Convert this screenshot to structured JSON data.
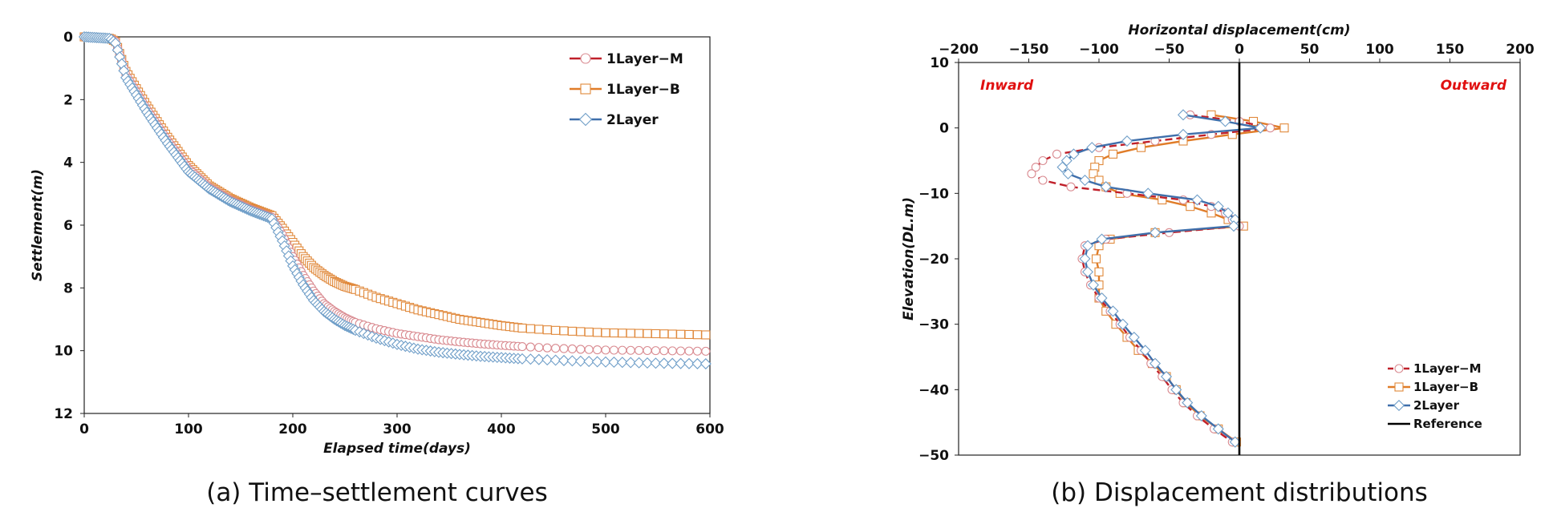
{
  "colors": {
    "m": "#c0202a",
    "b": "#e07c28",
    "layer2": "#3f6fab",
    "marker_m": "#d98a90",
    "marker_b": "#e0883a",
    "marker_2": "#6f9ec8",
    "reference": "#000000",
    "annotation": "#e01010"
  },
  "chart_data": [
    {
      "type": "scatter",
      "caption": "(a) Time–settlement curves",
      "xlabel": "Elapsed time(days)",
      "ylabel": "Settlement(m)",
      "xlim": [
        0,
        600
      ],
      "ylim": [
        0,
        12
      ],
      "y_inverted": true,
      "xticks": [
        0,
        100,
        200,
        300,
        400,
        500,
        600
      ],
      "yticks": [
        0,
        2,
        4,
        6,
        8,
        10,
        12
      ],
      "legend_position": "top-right",
      "series": [
        {
          "name": "1Layer−M",
          "key": "m",
          "marker": "circle",
          "x": [
            0,
            25,
            30,
            40,
            60,
            80,
            100,
            120,
            140,
            160,
            180,
            190,
            200,
            210,
            220,
            230,
            240,
            250,
            260,
            280,
            300,
            320,
            340,
            360,
            380,
            400,
            420,
            450,
            480,
            500,
            550,
            600
          ],
          "y": [
            0,
            0.05,
            0.15,
            1.2,
            2.3,
            3.3,
            4.2,
            4.8,
            5.2,
            5.5,
            5.75,
            6.3,
            7.0,
            7.6,
            8.1,
            8.5,
            8.75,
            8.95,
            9.1,
            9.3,
            9.45,
            9.55,
            9.65,
            9.72,
            9.78,
            9.83,
            9.87,
            9.92,
            9.96,
            9.98,
            10.0,
            10.02
          ]
        },
        {
          "name": "1Layer−B",
          "key": "b",
          "marker": "square",
          "x": [
            0,
            25,
            30,
            40,
            60,
            80,
            100,
            120,
            140,
            160,
            180,
            190,
            200,
            210,
            220,
            230,
            240,
            250,
            260,
            280,
            300,
            320,
            340,
            360,
            380,
            400,
            420,
            450,
            480,
            500,
            550,
            600
          ],
          "y": [
            0,
            0.05,
            0.15,
            1.1,
            2.2,
            3.2,
            4.1,
            4.75,
            5.15,
            5.45,
            5.7,
            6.1,
            6.55,
            7.0,
            7.35,
            7.6,
            7.8,
            7.95,
            8.05,
            8.3,
            8.5,
            8.7,
            8.85,
            9.0,
            9.1,
            9.2,
            9.28,
            9.35,
            9.4,
            9.43,
            9.46,
            9.5
          ]
        },
        {
          "name": "2Layer",
          "key": "layer2",
          "marker": "diamond",
          "x": [
            0,
            25,
            30,
            40,
            60,
            80,
            100,
            120,
            140,
            160,
            180,
            190,
            200,
            210,
            220,
            230,
            240,
            250,
            260,
            280,
            300,
            320,
            340,
            360,
            380,
            400,
            420,
            450,
            480,
            500,
            550,
            600
          ],
          "y": [
            0,
            0.05,
            0.2,
            1.3,
            2.4,
            3.4,
            4.3,
            4.85,
            5.25,
            5.55,
            5.8,
            6.5,
            7.3,
            7.9,
            8.4,
            8.75,
            9.0,
            9.2,
            9.35,
            9.6,
            9.8,
            9.95,
            10.05,
            10.12,
            10.18,
            10.22,
            10.26,
            10.3,
            10.34,
            10.36,
            10.4,
            10.42
          ]
        }
      ]
    },
    {
      "type": "line",
      "caption": "(b) Displacement distributions",
      "xlabel": "Horizontal displacement(cm)",
      "ylabel": "Elevation(DL.m)",
      "xlim": [
        -200,
        200
      ],
      "ylim": [
        -50,
        10
      ],
      "x_axis_position": "top",
      "xticks": [
        -200,
        -150,
        -100,
        -50,
        0,
        50,
        100,
        150,
        200
      ],
      "yticks": [
        10,
        0,
        -10,
        -20,
        -30,
        -40,
        -50
      ],
      "annotations": [
        "Inward",
        "Outward"
      ],
      "legend_position": "bottom-right",
      "series": [
        {
          "name": "1Layer−M",
          "key": "m",
          "marker": "circle",
          "elevation": [
            2,
            1,
            0,
            -1,
            -2,
            -3,
            -4,
            -5,
            -6,
            -7,
            -8,
            -9,
            -10,
            -11,
            -12,
            -13,
            -14,
            -15,
            -16,
            -17,
            -18,
            -20,
            -22,
            -24,
            -26,
            -28,
            -30,
            -32,
            -34,
            -36,
            -38,
            -40,
            -42,
            -44,
            -46,
            -48
          ],
          "displacement": [
            -35,
            0,
            22,
            -20,
            -60,
            -100,
            -130,
            -140,
            -145,
            -148,
            -140,
            -120,
            -80,
            -40,
            -20,
            -10,
            -5,
            0,
            -50,
            -95,
            -110,
            -112,
            -110,
            -106,
            -100,
            -92,
            -85,
            -78,
            -70,
            -63,
            -55,
            -48,
            -40,
            -30,
            -18,
            -5
          ]
        },
        {
          "name": "1Layer−B",
          "key": "b",
          "marker": "square",
          "elevation": [
            2,
            1,
            0,
            -1,
            -2,
            -3,
            -4,
            -5,
            -6,
            -7,
            -8,
            -9,
            -10,
            -11,
            -12,
            -13,
            -14,
            -15,
            -16,
            -17,
            -18,
            -20,
            -22,
            -24,
            -26,
            -28,
            -30,
            -32,
            -34,
            -36,
            -38,
            -40,
            -42,
            -44,
            -46,
            -48
          ],
          "displacement": [
            -20,
            10,
            32,
            -5,
            -40,
            -70,
            -90,
            -100,
            -103,
            -104,
            -100,
            -95,
            -85,
            -55,
            -35,
            -20,
            -8,
            3,
            -60,
            -92,
            -100,
            -102,
            -100,
            -100,
            -100,
            -95,
            -88,
            -80,
            -72,
            -62,
            -52,
            -45,
            -38,
            -28,
            -15,
            -2
          ]
        },
        {
          "name": "2Layer",
          "key": "layer2",
          "marker": "diamond",
          "elevation": [
            2,
            1,
            0,
            -1,
            -2,
            -3,
            -4,
            -5,
            -6,
            -7,
            -8,
            -9,
            -10,
            -11,
            -12,
            -13,
            -14,
            -15,
            -16,
            -17,
            -18,
            -20,
            -22,
            -24,
            -26,
            -28,
            -30,
            -32,
            -34,
            -36,
            -38,
            -40,
            -42,
            -44,
            -46,
            -48
          ],
          "displacement": [
            -40,
            -10,
            15,
            -40,
            -80,
            -105,
            -118,
            -123,
            -126,
            -122,
            -110,
            -95,
            -65,
            -30,
            -15,
            -8,
            -3,
            -4,
            -60,
            -98,
            -108,
            -110,
            -108,
            -104,
            -98,
            -90,
            -83,
            -75,
            -67,
            -60,
            -52,
            -45,
            -37,
            -27,
            -15,
            -3
          ]
        },
        {
          "name": "Reference",
          "key": "reference",
          "marker": "none",
          "elevation": [
            10,
            -50
          ],
          "displacement": [
            0,
            0
          ]
        }
      ]
    }
  ]
}
